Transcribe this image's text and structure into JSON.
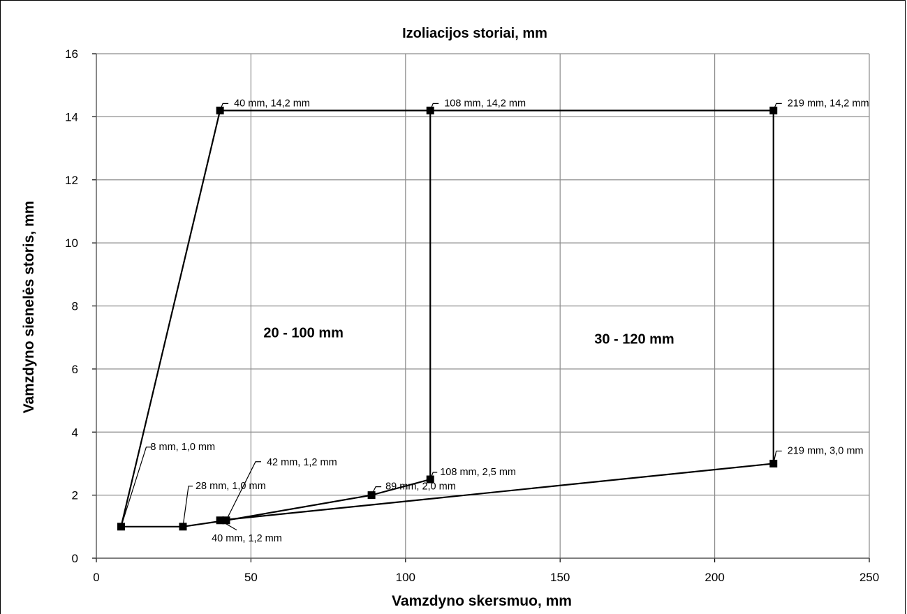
{
  "chart_data": {
    "type": "line",
    "title": "Izoliacijos storiai, mm",
    "xlabel": "Vamzdyno skersmuo, mm",
    "ylabel": "Vamzdyno sienelės storis, mm",
    "xlim": [
      0,
      250
    ],
    "ylim": [
      0,
      16
    ],
    "xticks": [
      0,
      50,
      100,
      150,
      200,
      250
    ],
    "yticks": [
      0,
      2,
      4,
      6,
      8,
      10,
      12,
      14,
      16
    ],
    "xtick_labels": [
      "0",
      "50",
      "100",
      "150",
      "200",
      "250"
    ],
    "ytick_labels": [
      "0",
      "2",
      "4",
      "6",
      "8",
      "10",
      "12",
      "14",
      "16"
    ],
    "grid": true,
    "legend": "none",
    "points": [
      {
        "x": 8,
        "y": 1.0,
        "label": "8 mm, 1,0 mm"
      },
      {
        "x": 28,
        "y": 1.0,
        "label": "28 mm, 1,0 mm"
      },
      {
        "x": 40,
        "y": 1.2,
        "label": "40 mm, 1,2 mm"
      },
      {
        "x": 42,
        "y": 1.2,
        "label": "42 mm, 1,2 mm"
      },
      {
        "x": 89,
        "y": 2.0,
        "label": "89 mm, 2,0 mm"
      },
      {
        "x": 108,
        "y": 2.5,
        "label": "108 mm, 2,5 mm"
      },
      {
        "x": 219,
        "y": 3.0,
        "label": "219 mm, 3,0 mm"
      },
      {
        "x": 40,
        "y": 14.2,
        "label": "40 mm, 14,2 mm"
      },
      {
        "x": 108,
        "y": 14.2,
        "label": "108 mm, 14,2 mm"
      },
      {
        "x": 219,
        "y": 14.2,
        "label": "219 mm, 14,2 mm"
      }
    ],
    "segments": [
      [
        [
          8,
          1.0
        ],
        [
          40,
          14.2
        ]
      ],
      [
        [
          40,
          14.2
        ],
        [
          219,
          14.2
        ]
      ],
      [
        [
          108,
          14.2
        ],
        [
          108,
          2.5
        ]
      ],
      [
        [
          219,
          14.2
        ],
        [
          219,
          3.0
        ]
      ],
      [
        [
          8,
          1.0
        ],
        [
          28,
          1.0
        ]
      ],
      [
        [
          28,
          1.0
        ],
        [
          42,
          1.2
        ]
      ],
      [
        [
          42,
          1.2
        ],
        [
          89,
          2.0
        ]
      ],
      [
        [
          89,
          2.0
        ],
        [
          108,
          2.5
        ]
      ],
      [
        [
          40,
          1.2
        ],
        [
          219,
          3.0
        ]
      ]
    ],
    "annotations": [
      {
        "text": "20 - 100 mm",
        "x": 67,
        "y": 7.0
      },
      {
        "text": "30 - 120 mm",
        "x": 174,
        "y": 6.8
      }
    ],
    "colors": {
      "line": "#000000",
      "marker": "#000000",
      "grid": "#8c8c8c"
    }
  }
}
